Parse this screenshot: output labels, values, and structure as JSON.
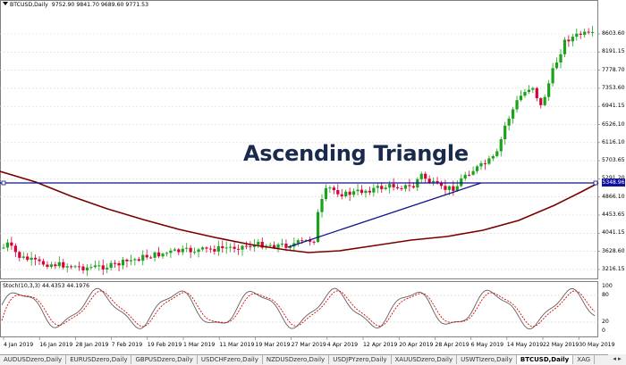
{
  "chart_header": {
    "symbol": "BTCUSD,Daily",
    "ohlc": "9752.90 9841.70 9689.60 9771.53"
  },
  "title": "Ascending Triangle",
  "current_price_label": "5348.96",
  "indicator_header": "Stoch(10,3,3) 44.4353 44.1976",
  "price_axis": [
    "8603.60",
    "8191.15",
    "7778.70",
    "7353.60",
    "6941.15",
    "6526.10",
    "6116.10",
    "5703.65",
    "5291.20",
    "4866.10",
    "4453.65",
    "4041.15",
    "3628.60",
    "3216.15"
  ],
  "stoch_axis": [
    "100",
    "80",
    "20",
    "0"
  ],
  "date_axis": [
    "4 Jan 2019",
    "16 Jan 2019",
    "28 Jan 2019",
    "7 Feb 2019",
    "19 Feb 2019",
    "1 Mar 2019",
    "11 Mar 2019",
    "19 Mar 2019",
    "27 Mar 2019",
    "4 Apr 2019",
    "12 Apr 2019",
    "20 Apr 2019",
    "28 Apr 2019",
    "6 May 2019",
    "14 May 2019",
    "22 May 2019",
    "30 May 2019"
  ],
  "tabs": [
    "AUDUSDzero,Daily",
    "EURUSDzero,Daily",
    "GBPUSDzero,Daily",
    "USDCHFzero,Daily",
    "NZDUSDzero,Daily",
    "USDJPYzero,Daily",
    "XAUUSDzero,Daily",
    "USWTIzero,Daily",
    "BTCUSD,Daily",
    "XAG"
  ],
  "active_tab": "BTCUSD,Daily",
  "colors": {
    "bull": "#1aa31a",
    "bear": "#d8003a",
    "ma": "#7a0000",
    "trend": "#10108a",
    "title": "#1a2a4c",
    "stoch_main": "#606060",
    "stoch_signal": "#e00000"
  }
}
